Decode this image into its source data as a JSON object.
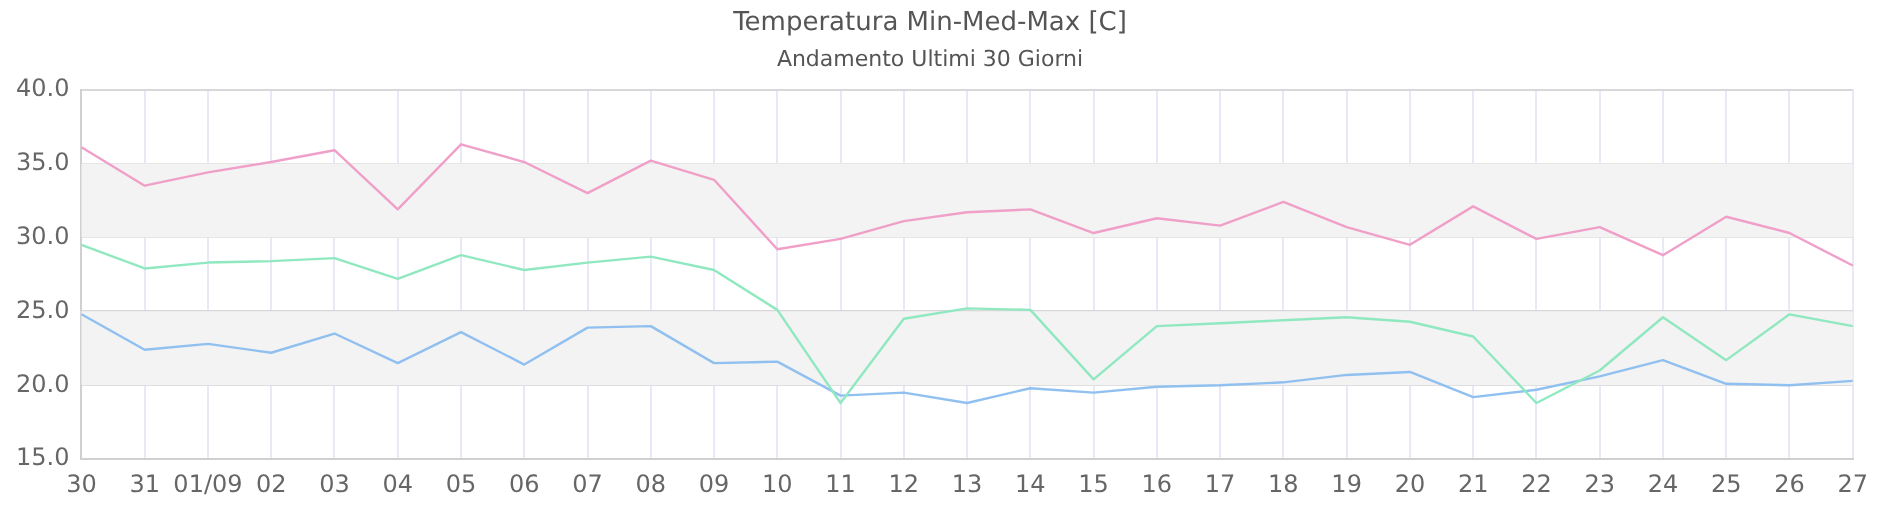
{
  "chart_data": {
    "type": "line",
    "title": "Temperatura Min-Med-Max [C]",
    "subtitle": "Andamento Ultimi 30 Giorni",
    "categories": [
      "30",
      "31",
      "01/09",
      "02",
      "03",
      "04",
      "05",
      "06",
      "07",
      "08",
      "09",
      "10",
      "11",
      "12",
      "13",
      "14",
      "15",
      "16",
      "17",
      "18",
      "19",
      "20",
      "21",
      "22",
      "23",
      "24",
      "25",
      "26",
      "27"
    ],
    "series": [
      {
        "color": "#f0a0c8",
        "values": [
          36.1,
          33.5,
          34.4,
          35.1,
          35.9,
          31.9,
          36.3,
          35.1,
          33.0,
          35.2,
          33.9,
          29.2,
          29.9,
          31.1,
          31.7,
          31.9,
          30.3,
          31.3,
          30.8,
          32.4,
          30.7,
          29.5,
          32.1,
          29.9,
          30.7,
          28.8,
          31.4,
          30.3,
          28.1
        ]
      },
      {
        "color": "#90e8c0",
        "values": [
          29.5,
          27.9,
          28.3,
          28.4,
          28.6,
          27.2,
          28.8,
          27.8,
          28.3,
          28.7,
          27.8,
          25.1,
          18.8,
          24.5,
          25.2,
          25.1,
          20.4,
          24.0,
          24.2,
          24.4,
          24.6,
          24.3,
          23.3,
          18.8,
          21.0,
          24.6,
          21.7,
          24.8,
          24.0
        ]
      },
      {
        "color": "#90c0f0",
        "values": [
          24.8,
          22.4,
          22.8,
          22.2,
          23.5,
          21.5,
          23.6,
          21.4,
          23.9,
          24.0,
          21.5,
          21.6,
          19.3,
          19.5,
          18.8,
          19.8,
          19.5,
          19.9,
          20.0,
          20.2,
          20.7,
          20.9,
          19.2,
          19.7,
          20.6,
          21.7,
          20.1,
          20.0,
          20.3
        ]
      }
    ],
    "ylim": [
      15,
      40
    ],
    "yticks": [
      {
        "value": 15,
        "label": "15.0"
      },
      {
        "value": 20,
        "label": "20.0"
      },
      {
        "value": 25,
        "label": "25.0"
      },
      {
        "value": 30,
        "label": "30.0"
      },
      {
        "value": 35,
        "label": "35.0"
      },
      {
        "value": 40,
        "label": "40.0"
      }
    ],
    "bands": [
      {
        "axis": "y",
        "from": 20,
        "to": 25,
        "color": "#f3f3f3"
      },
      {
        "axis": "y",
        "from": 30,
        "to": 35,
        "color": "#f3f3f3"
      }
    ],
    "grid": true,
    "legend": false,
    "marker": "none",
    "line_style": "solid"
  }
}
